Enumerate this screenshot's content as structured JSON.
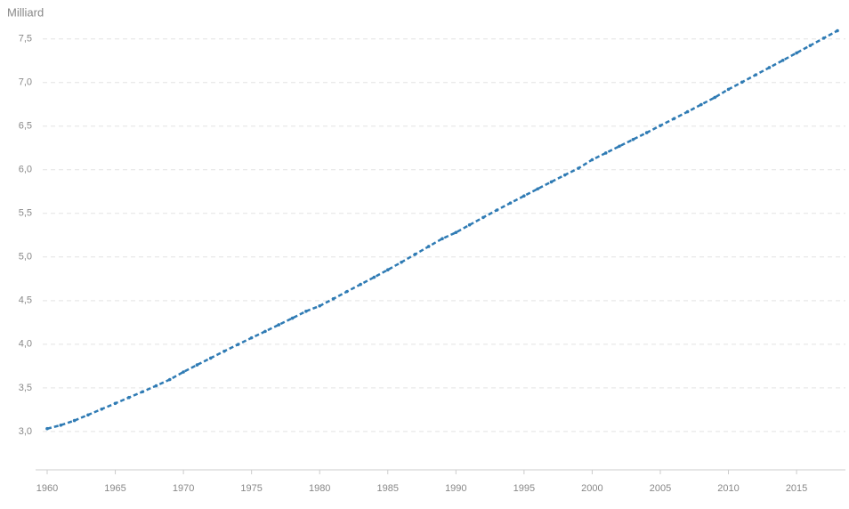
{
  "chart_data": {
    "type": "line",
    "y_label": "Milliard",
    "color": "#2f7bb4",
    "x": [
      1960,
      1961,
      1962,
      1963,
      1964,
      1965,
      1966,
      1967,
      1968,
      1969,
      1970,
      1971,
      1972,
      1973,
      1974,
      1975,
      1976,
      1977,
      1978,
      1979,
      1980,
      1981,
      1982,
      1983,
      1984,
      1985,
      1986,
      1987,
      1988,
      1989,
      1990,
      1991,
      1992,
      1993,
      1994,
      1995,
      1996,
      1997,
      1998,
      1999,
      2000,
      2001,
      2002,
      2003,
      2004,
      2005,
      2006,
      2007,
      2008,
      2009,
      2010,
      2011,
      2012,
      2013,
      2014,
      2015,
      2016,
      2017,
      2018
    ],
    "values": [
      3.032,
      3.072,
      3.125,
      3.19,
      3.256,
      3.322,
      3.389,
      3.455,
      3.524,
      3.595,
      3.682,
      3.763,
      3.841,
      3.92,
      3.997,
      4.073,
      4.147,
      4.223,
      4.299,
      4.378,
      4.439,
      4.52,
      4.604,
      4.686,
      4.768,
      4.853,
      4.94,
      5.03,
      5.121,
      5.21,
      5.281,
      5.368,
      5.453,
      5.537,
      5.619,
      5.7,
      5.781,
      5.861,
      5.94,
      6.018,
      6.115,
      6.192,
      6.27,
      6.347,
      6.425,
      6.506,
      6.585,
      6.665,
      6.747,
      6.829,
      6.922,
      7.004,
      7.088,
      7.171,
      7.255,
      7.339,
      7.424,
      7.509,
      7.594
    ],
    "xlim": [
      1960,
      2018
    ],
    "ylim": [
      2.56,
      7.64
    ],
    "xticks": [
      1960,
      1965,
      1970,
      1975,
      1980,
      1985,
      1990,
      1995,
      2000,
      2005,
      2010,
      2015
    ],
    "yticks": [
      {
        "value": 3.0,
        "label": "3,0"
      },
      {
        "value": 3.5,
        "label": "3,5"
      },
      {
        "value": 4.0,
        "label": "4,0"
      },
      {
        "value": 4.5,
        "label": "4,5"
      },
      {
        "value": 5.0,
        "label": "5,0"
      },
      {
        "value": 5.5,
        "label": "5,5"
      },
      {
        "value": 6.0,
        "label": "6,0"
      },
      {
        "value": 6.5,
        "label": "6,5"
      },
      {
        "value": 7.0,
        "label": "7,0"
      },
      {
        "value": 7.5,
        "label": "7,5"
      }
    ],
    "grid": true
  }
}
